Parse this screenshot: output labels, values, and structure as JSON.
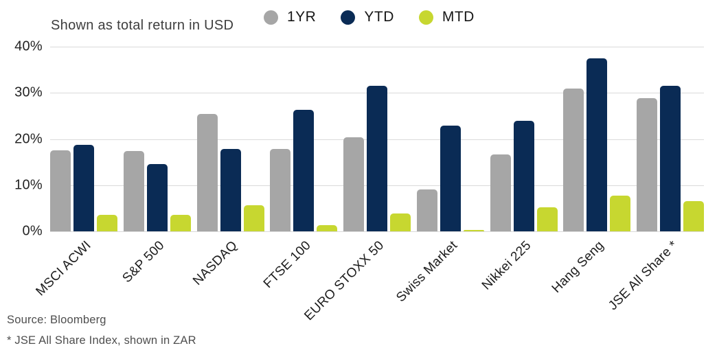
{
  "subtitle": "Shown as total return in USD",
  "legend": [
    {
      "label": "1YR",
      "color": "#a6a6a6"
    },
    {
      "label": "YTD",
      "color": "#0a2b55"
    },
    {
      "label": "MTD",
      "color": "#c7d730"
    }
  ],
  "footnotes": {
    "source": "Source: Bloomberg",
    "note": "* JSE All Share Index, shown in ZAR"
  },
  "chart_data": {
    "type": "bar",
    "title": "Shown as total return in USD",
    "categories": [
      "MSCI ACWI",
      "S&P 500",
      "NASDAQ",
      "FTSE 100",
      "EURO STOXX 50",
      "Swiss Market",
      "Nikkei 225",
      "Hang Seng",
      "JSE All Share *"
    ],
    "series": [
      {
        "name": "1YR",
        "color": "#a6a6a6",
        "values": [
          17.5,
          17.4,
          25.4,
          17.9,
          20.3,
          9.1,
          16.7,
          31.0,
          28.8
        ]
      },
      {
        "name": "YTD",
        "color": "#0a2b55",
        "values": [
          18.8,
          14.6,
          17.9,
          26.3,
          31.6,
          22.9,
          23.9,
          37.5,
          31.5
        ]
      },
      {
        "name": "MTD",
        "color": "#c7d730",
        "values": [
          3.6,
          3.5,
          5.7,
          1.4,
          3.8,
          0.3,
          5.2,
          7.7,
          6.5
        ]
      }
    ],
    "ylabel": "",
    "xlabel": "",
    "ylim": [
      0,
      40
    ],
    "y_ticks": [
      "40%",
      "30%",
      "20%",
      "10%",
      "0%"
    ],
    "grid": true,
    "legend_position": "top-center",
    "source": "Source: Bloomberg",
    "footnote": "* JSE All Share Index, shown in ZAR"
  }
}
